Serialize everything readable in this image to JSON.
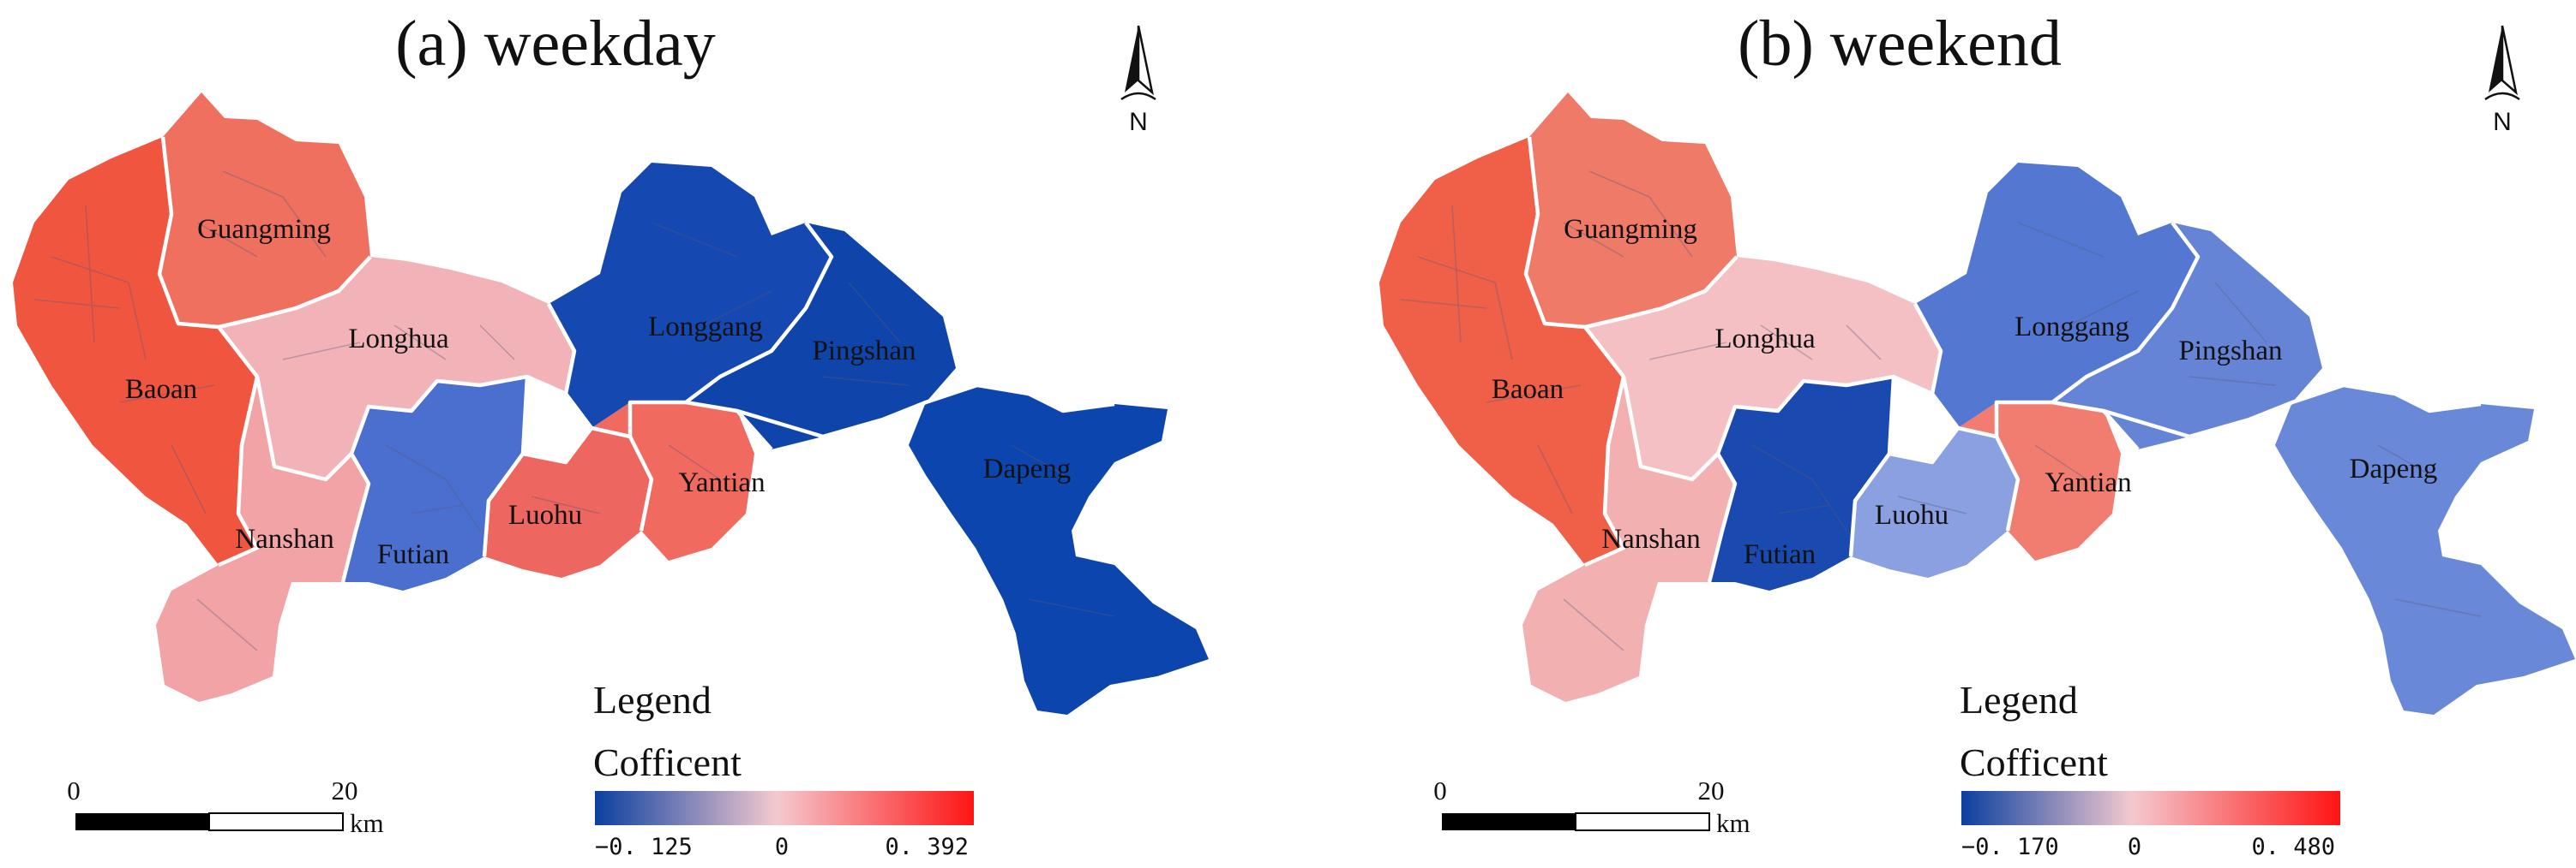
{
  "colors": {
    "negative": "#0b3fa0",
    "neutral": "#f4c9cf",
    "positive": "#ff1414"
  },
  "panels": [
    {
      "id": "weekday",
      "title": "(a) weekday",
      "north_label": "N",
      "legend": {
        "title": "Legend",
        "subtitle": "Cofficent",
        "min_label": "−0. 125",
        "mid_label": "0",
        "max_label": "0. 392"
      },
      "scale_bar": {
        "start_label": "0",
        "end_label": "20",
        "unit": "km"
      },
      "districts": [
        {
          "name": "Guangming",
          "fill": "#f07060"
        },
        {
          "name": "Longhua",
          "fill": "#f2b3b8"
        },
        {
          "name": "Baoan",
          "fill": "#f05540"
        },
        {
          "name": "Nanshan",
          "fill": "#f2a3a6"
        },
        {
          "name": "Futian",
          "fill": "#4a6fce"
        },
        {
          "name": "Luohu",
          "fill": "#ee6660"
        },
        {
          "name": "Longgang",
          "fill": "#1548b0"
        },
        {
          "name": "Pingshan",
          "fill": "#0f45aa"
        },
        {
          "name": "Yantian",
          "fill": "#f06a60"
        },
        {
          "name": "Dapeng",
          "fill": "#0b45ad"
        }
      ]
    },
    {
      "id": "weekend",
      "title": "(b) weekend",
      "north_label": "N",
      "legend": {
        "title": "Legend",
        "subtitle": "Cofficent",
        "min_label": "−0. 170",
        "mid_label": "0",
        "max_label": "0. 480"
      },
      "scale_bar": {
        "start_label": "0",
        "end_label": "20",
        "unit": "km"
      },
      "districts": [
        {
          "name": "Guangming",
          "fill": "#f07a68"
        },
        {
          "name": "Longhua",
          "fill": "#f4c0c4"
        },
        {
          "name": "Baoan",
          "fill": "#f06048"
        },
        {
          "name": "Nanshan",
          "fill": "#f3b0b1"
        },
        {
          "name": "Futian",
          "fill": "#1a4aaf"
        },
        {
          "name": "Luohu",
          "fill": "#8aa0e0"
        },
        {
          "name": "Longgang",
          "fill": "#5478d2"
        },
        {
          "name": "Pingshan",
          "fill": "#6684d6"
        },
        {
          "name": "Yantian",
          "fill": "#f07d70"
        },
        {
          "name": "Dapeng",
          "fill": "#6a88d8"
        }
      ]
    }
  ]
}
